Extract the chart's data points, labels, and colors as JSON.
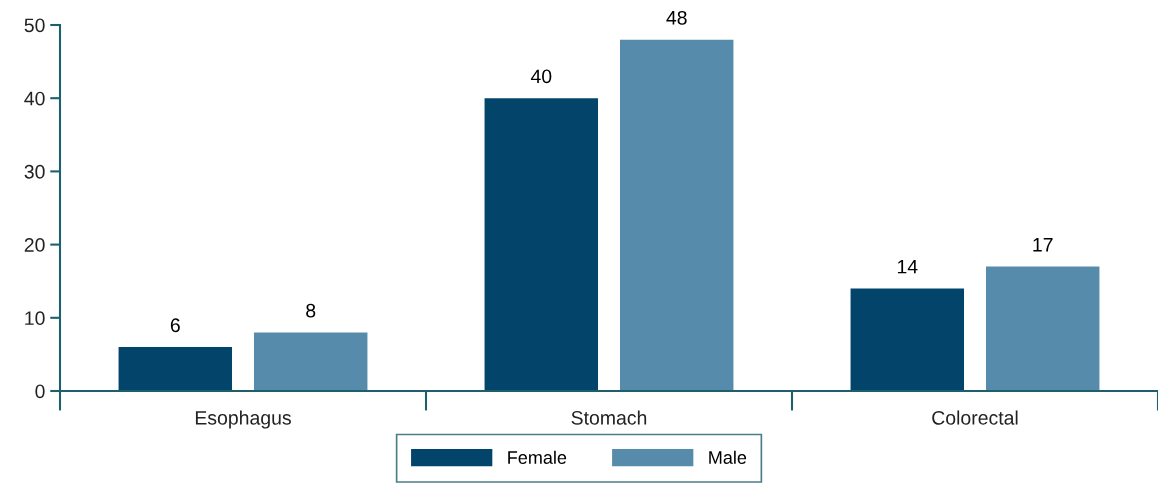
{
  "chart_data": {
    "type": "bar",
    "categories": [
      "Esophagus",
      "Stomach",
      "Colorectal"
    ],
    "series": [
      {
        "name": "Female",
        "color": "#03446a",
        "values": [
          6,
          40,
          14
        ]
      },
      {
        "name": "Male",
        "color": "#568bab",
        "values": [
          8,
          48,
          17
        ]
      }
    ],
    "ylim": [
      0,
      50
    ],
    "yticks": [
      0,
      10,
      20,
      30,
      40,
      50
    ],
    "data_labels": true,
    "legend": "bottom",
    "grid": false
  }
}
